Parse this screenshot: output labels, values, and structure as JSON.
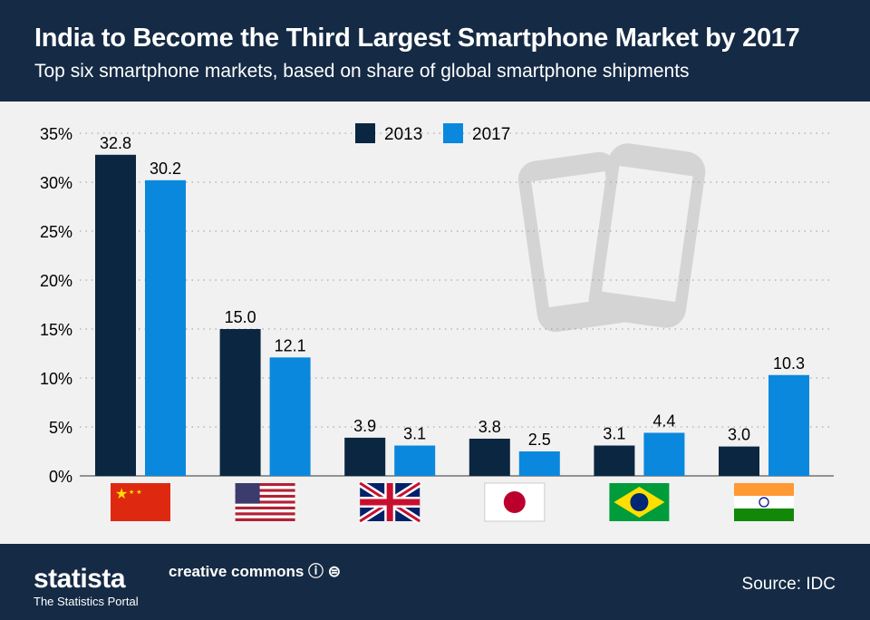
{
  "header": {
    "title": "India to Become the Third Largest Smartphone Market by 2017",
    "subtitle": "Top six smartphone markets, based on share of global smartphone shipments"
  },
  "footer": {
    "logo": "statista",
    "tagline": "The Statistics Portal",
    "license": "creative commons",
    "source": "Source: IDC"
  },
  "colors": {
    "header": "#152a44",
    "series_2013": "#0b2640",
    "series_2017": "#0a88dd"
  },
  "chart_data": {
    "type": "bar",
    "categories": [
      "china-flag",
      "usa-flag",
      "uk-flag",
      "japan-flag",
      "brazil-flag",
      "india-flag"
    ],
    "series": [
      {
        "name": "2013",
        "values": [
          32.8,
          15.0,
          3.9,
          3.8,
          3.1,
          3.0
        ]
      },
      {
        "name": "2017",
        "values": [
          30.2,
          12.1,
          3.1,
          2.5,
          4.4,
          10.3
        ]
      }
    ],
    "ylim": [
      0,
      35
    ],
    "yticks": [
      "0%",
      "5%",
      "10%",
      "15%",
      "20%",
      "25%",
      "30%",
      "35%"
    ],
    "grid": true,
    "legend": "top-center"
  }
}
